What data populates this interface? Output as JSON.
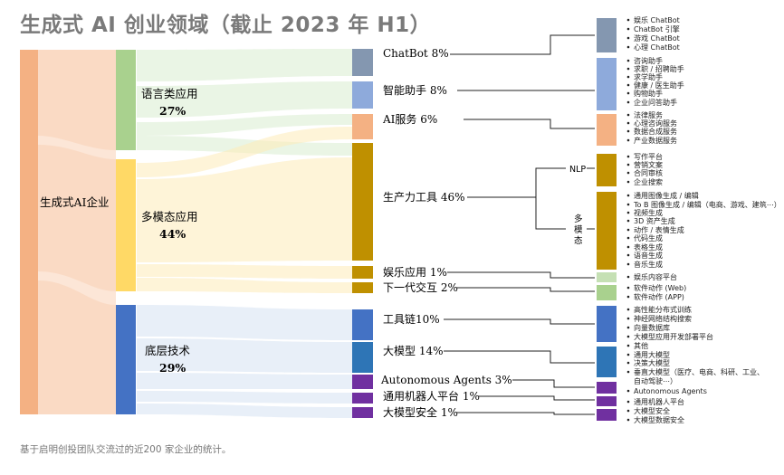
{
  "title": "生成式 AI 创业领域（截止 2023 年 H1）",
  "footnote": "基于启明创投团队交流过的近200 家企业的统计。",
  "root": {
    "label": "生成式AI企业",
    "color": "#f3b08a"
  },
  "groups": [
    {
      "label": "语言类应用",
      "pct": "27%",
      "color": "#a8d08d",
      "flow": "#cfe6c0"
    },
    {
      "label": "多模态应用",
      "pct": "44%",
      "color": "#ffd966",
      "flow": "#fde9a8"
    },
    {
      "label": "底层技术",
      "pct": "29%",
      "color": "#4472c4",
      "flow": "#b9cde8"
    }
  ],
  "categories": [
    {
      "label": "ChatBot 8%",
      "color": "#8497b0"
    },
    {
      "label": "智能助手 8%",
      "color": "#8eaadb"
    },
    {
      "label": "AI服务 6%",
      "color": "#f4b183"
    },
    {
      "label": "生产力工具 46%",
      "color": "#bf9000"
    },
    {
      "label": "娱乐应用 1%",
      "color": "#bf9000"
    },
    {
      "label": "下一代交互 2%",
      "color": "#bf9000"
    },
    {
      "label": "工具链10%",
      "color": "#4472c4"
    },
    {
      "label": "大模型 14%",
      "color": "#2e75b6"
    },
    {
      "label": "Autonomous Agents 3%",
      "color": "#7030a0"
    },
    {
      "label": "通用机器人平台 1%",
      "color": "#7030a0"
    },
    {
      "label": "大模型安全 1%",
      "color": "#7030a0"
    }
  ],
  "sublabels": {
    "nlp": "NLP",
    "multimodal": [
      "多",
      "模",
      "态"
    ]
  },
  "details": [
    {
      "color": "#8497b0",
      "items": [
        "娱乐 ChatBot",
        "ChatBot 引擎",
        "游戏 ChatBot",
        "心理 ChatBot"
      ]
    },
    {
      "color": "#8eaadb",
      "items": [
        "咨询助手",
        "求职 / 招聘助手",
        "求学助手",
        "健康 / 医生助手",
        "购物助手",
        "企业问答助手"
      ]
    },
    {
      "color": "#f4b183",
      "items": [
        "法律服务",
        "心理咨询服务",
        "数据合成服务",
        "产业数据服务"
      ]
    },
    {
      "color": "#bf9000",
      "items": [
        "写作平台",
        "营销文案",
        "合同审核",
        "企业搜索"
      ]
    },
    {
      "color": "#bf9000",
      "items": [
        "通用图像生成 / 编辑",
        "To B 图像生成 / 编辑（电商、游戏、建筑⋯）",
        "视频生成",
        "3D 资产生成",
        "动作 / 表情生成",
        "代码生成",
        "表格生成",
        "语音生成",
        "音乐生成"
      ]
    },
    {
      "color": "#c5e0b4",
      "items": [
        "娱乐内容平台"
      ]
    },
    {
      "color": "#a9d18e",
      "items": [
        "软件动作 (Web)",
        "软件动作 (APP)"
      ]
    },
    {
      "color": "#4472c4",
      "items": [
        "高性能分布式训练",
        "神经网络结构搜索",
        "向量数据库",
        "大模型应用开发部署平台"
      ]
    },
    {
      "color": "#2e75b6",
      "items": [
        "其他",
        "通用大模型",
        "决策大模型",
        "垂直大模型（医疗、电商、科研、工业、",
        "自动驾驶⋯）"
      ]
    },
    {
      "color": "#7030a0",
      "items": [
        "Autonomous Agents"
      ]
    },
    {
      "color": "#7030a0",
      "items": [
        "通用机器人平台"
      ]
    },
    {
      "color": "#7030a0",
      "items": [
        "大模型安全",
        "大模型数据安全"
      ]
    }
  ]
}
